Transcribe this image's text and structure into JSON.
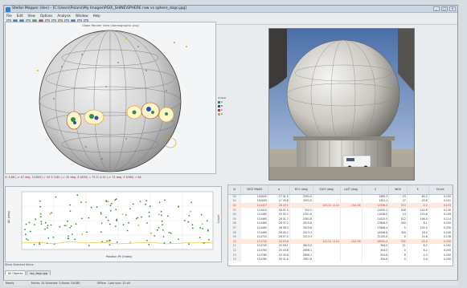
{
  "window": {
    "title": "Stellar Mapper (dev) - [C:\\Users\\Polaris\\My Images\\PG0\\_SHINE\\SPHERE raw vs sphere_dsgn.jpg]",
    "buttons": [
      "_",
      "□",
      "×"
    ]
  },
  "menu": [
    "File",
    "Edit",
    "View",
    "Options",
    "Analysis",
    "Window",
    "Help"
  ],
  "globe": {
    "caption": "Globe Render View (stereographic proj)",
    "bg_color": "#ffffff",
    "sphere_color": "#d4d4d4"
  },
  "color_legend": {
    "title": "Cluster",
    "items": [
      {
        "label": "A",
        "color": "#2e8b57"
      },
      {
        "label": "B",
        "color": "#2255aa"
      },
      {
        "label": "C",
        "color": "#c0392b"
      },
      {
        "label": "D",
        "color": "#e0b000"
      }
    ]
  },
  "coords_line": "X: 4.68 (-> 67 deg, 3.1855) = 50    Y: 3.80 (-> 35 deg, 3.1855) = 75    Z: 4.32 (-> 72 deg, 3.3065) = 84",
  "scatter": {
    "ylabel": "Alt (deg)",
    "xlabel": "Position Ph (Index)",
    "ylabel_right": "Count"
  },
  "status_small": "Show Selected Items",
  "table": {
    "columns": [
      "Id",
      "SRCE RNAM",
      "A",
      "BT.0 (deg)",
      "SLEO (deg)",
      "LAST (deg)",
      "S",
      "INDX",
      "E",
      "Errors"
    ],
    "rows": [
      {
        "id": "00",
        "c": [
          "104005",
          "27 41.5",
          "2591.0",
          "",
          "",
          "1565.3",
          "23",
          "60.2",
          "0.100"
        ],
        "hl": false
      },
      {
        "id": "01",
        "c": [
          "104005",
          "27 45.8",
          "2501.5",
          "",
          "",
          "1301.4",
          "27",
          "43.8",
          "0.101"
        ],
        "hl": false
      },
      {
        "id": "02",
        "c": [
          "114327",
          "28 22.1",
          "",
          "101.21 -0.14",
          "-014.35",
          "12336.4",
          "313",
          "4.2",
          "0.133"
        ],
        "hl": true
      },
      {
        "id": "03",
        "c": [
          "114415",
          "28 51.3",
          "352.2",
          "",
          "",
          "11020.2",
          "426",
          "142.8",
          "0.130"
        ],
        "hl": false
      },
      {
        "id": "04",
        "c": [
          "114465",
          "29 55.7",
          "2341.6",
          "",
          "",
          "11046.0",
          "14",
          "103.6",
          "0.109"
        ],
        "hl": false
      },
      {
        "id": "05",
        "c": [
          "114465",
          "28 51.7",
          "2391.8",
          "",
          "",
          "11025.5",
          "512",
          "146.4",
          "0.114"
        ],
        "hl": false
      },
      {
        "id": "06",
        "c": [
          "114465",
          "28 37.2",
          "3015.8",
          "",
          "",
          "17806.5",
          "404",
          "8.1",
          "0.250"
        ],
        "hl": false
      },
      {
        "id": "07",
        "c": [
          "114465",
          "26 58.3",
          "3015.8",
          "",
          "",
          "17806.4",
          "5",
          "145.0",
          "0.230"
        ],
        "hl": false
      },
      {
        "id": "08",
        "c": [
          "114465",
          "26 45.2",
          "2013.3",
          "",
          "",
          "14946.6",
          "300",
          "29.4",
          "0.240"
        ],
        "hl": false
      },
      {
        "id": "09",
        "c": [
          "114725",
          "26 57.5",
          "2013.3",
          "",
          "",
          "12145.0",
          "0",
          "14.6",
          "0.136"
        ],
        "hl": false
      },
      {
        "id": "10",
        "c": [
          "114745",
          "26 53.6",
          "",
          "101.21 -0.14",
          "-014.35",
          "16500.4",
          "302",
          "43.0",
          "0.240"
        ],
        "hl": true
      },
      {
        "id": "11",
        "c": [
          "114745",
          "25 59.1",
          "3815.0",
          "",
          "",
          "394.0",
          "11",
          "8.2",
          "0.192"
        ],
        "hl": false
      },
      {
        "id": "12",
        "c": [
          "114765",
          "25 43.8",
          "2856.1",
          "",
          "",
          "354.5",
          "0",
          "6.2",
          "0.250"
        ],
        "hl": false
      },
      {
        "id": "13",
        "c": [
          "114785",
          "25 35.8",
          "2856.1",
          "",
          "",
          "354.6",
          "8",
          "4.3",
          "0.250"
        ],
        "hl": false
      },
      {
        "id": "14",
        "c": [
          "114785",
          "26 31.6",
          "2901.8",
          "",
          "",
          "354.6",
          "0",
          "4.4",
          "0.250"
        ],
        "hl": false
      }
    ]
  },
  "tabs": [
    "All Objects",
    "sky_dsgn.jpg"
  ],
  "statusbar": [
    "Ready",
    "Points: 15  Selected: 3  Mode: GLOBE",
    "Offline - Last sync 12:44"
  ]
}
